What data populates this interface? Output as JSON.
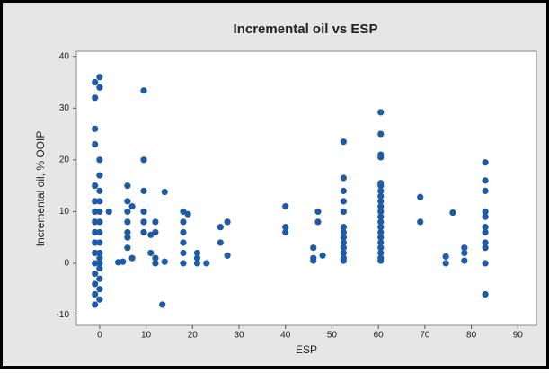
{
  "chart_data": {
    "type": "scatter",
    "title": "Incremental oil vs ESP",
    "x_label": "ESP",
    "y_label": "Incremental oil, % OOIP",
    "color": "#1f5aa6",
    "x": [
      -1,
      -1,
      -1,
      -1,
      -1,
      -1,
      -1,
      -1,
      -1,
      -1,
      -1,
      -1,
      -1,
      -1,
      -1,
      -1,
      0,
      0,
      0,
      0,
      0,
      0,
      0,
      0,
      0,
      0,
      0,
      0,
      0,
      0,
      0,
      0,
      0,
      2,
      4,
      5,
      6,
      6,
      6,
      6,
      6,
      6,
      6,
      7,
      7,
      9.5,
      9.5,
      9.5,
      9.5,
      9.5,
      9.5,
      11,
      11,
      12,
      12,
      12,
      12,
      13.5,
      14,
      14,
      18,
      18,
      18,
      18,
      18,
      18,
      19,
      21,
      21,
      21,
      23,
      26,
      26,
      27.5,
      27.5,
      40,
      40,
      40,
      46,
      46,
      46,
      47,
      47,
      48,
      52.5,
      52.5,
      52.5,
      52.5,
      52.5,
      52.5,
      52.5,
      52.5,
      52.5,
      52.5,
      52.5,
      52.5,
      52.5,
      60.5,
      60.5,
      60.5,
      60.5,
      60.5,
      60.5,
      60.5,
      60.5,
      60.5,
      60.5,
      60.5,
      60.5,
      60.5,
      60.5,
      60.5,
      60.5,
      60.5,
      60.5,
      60.5,
      60.5,
      60.5,
      69,
      69,
      74.5,
      74.5,
      76,
      78.5,
      78.5,
      78.5,
      83,
      83,
      83,
      83,
      83,
      83,
      83,
      83,
      83,
      83,
      83
    ],
    "values": [
      35,
      32,
      26,
      23,
      15,
      12,
      10,
      8,
      6,
      4,
      2,
      0,
      -2,
      -4,
      -6,
      -8,
      36,
      34,
      20,
      17,
      14,
      12,
      10,
      8,
      6,
      4,
      2,
      1,
      0,
      -1,
      -3,
      -5,
      -7,
      10,
      0.2,
      0.3,
      15,
      12,
      10,
      8,
      6,
      5,
      3,
      11,
      1,
      33.4,
      20,
      14,
      10,
      8,
      6,
      5.5,
      2,
      8,
      6,
      1,
      0,
      -8,
      13.8,
      0.3,
      10,
      8,
      6,
      4,
      2,
      0,
      9.5,
      2,
      1,
      0,
      0,
      7,
      4,
      8,
      1.5,
      11,
      7,
      6,
      3,
      1,
      0.5,
      10,
      8,
      1.5,
      23.5,
      16.5,
      14,
      12,
      10,
      7,
      6,
      5,
      4,
      3,
      2,
      1,
      0.5,
      29.2,
      25,
      21,
      20.5,
      15.5,
      15,
      14,
      13,
      12,
      11,
      10,
      9,
      8,
      7,
      6,
      5,
      4,
      3,
      2,
      1,
      0.5,
      12.8,
      8,
      1.3,
      0,
      9.8,
      3,
      2,
      0.5,
      19.5,
      16,
      14,
      10,
      9,
      7,
      6,
      4,
      3,
      0,
      -6
    ],
    "xlim": [
      -5,
      94
    ],
    "ylim": [
      -12,
      41
    ],
    "xticks": [
      0,
      10,
      20,
      30,
      40,
      50,
      60,
      70,
      80,
      90
    ],
    "yticks": [
      -10,
      0,
      10,
      20,
      30,
      40
    ]
  }
}
